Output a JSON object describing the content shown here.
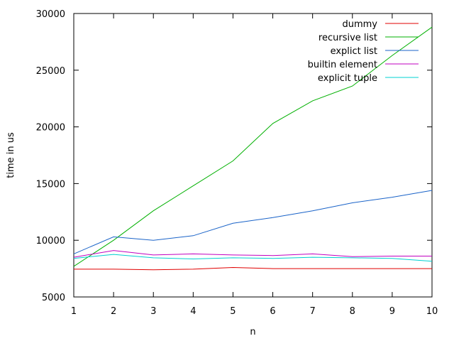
{
  "chart_data": {
    "type": "line",
    "title": "",
    "xlabel": "n",
    "ylabel": "time in us",
    "x": [
      1,
      2,
      3,
      4,
      5,
      6,
      7,
      8,
      9,
      10
    ],
    "xlim": [
      1,
      10
    ],
    "ylim": [
      5000,
      30000
    ],
    "xticks": [
      "1",
      "2",
      "3",
      "4",
      "5",
      "6",
      "7",
      "8",
      "9",
      "10"
    ],
    "yticks": [
      "5000",
      "10000",
      "15000",
      "20000",
      "25000",
      "30000"
    ],
    "grid": false,
    "legend_position": "top-right",
    "series": [
      {
        "name": "dummy",
        "color": "#e00000",
        "values": [
          7450,
          7450,
          7400,
          7450,
          7600,
          7500,
          7500,
          7500,
          7500,
          7500
        ]
      },
      {
        "name": "recursive list",
        "color": "#00b000",
        "values": [
          7700,
          10000,
          12600,
          14800,
          17000,
          20300,
          22300,
          23600,
          26300,
          28800
        ]
      },
      {
        "name": "explict list",
        "color": "#1a63c8",
        "values": [
          8800,
          10300,
          10000,
          10400,
          11500,
          12000,
          12600,
          13300,
          13800,
          14400
        ]
      },
      {
        "name": "builtin element",
        "color": "#c000c0",
        "values": [
          8500,
          9100,
          8700,
          8800,
          8700,
          8650,
          8800,
          8550,
          8600,
          8600
        ]
      },
      {
        "name": "explicit tuple",
        "color": "#00d0d0",
        "values": [
          8400,
          8750,
          8450,
          8350,
          8450,
          8400,
          8500,
          8450,
          8400,
          8150
        ]
      }
    ]
  }
}
